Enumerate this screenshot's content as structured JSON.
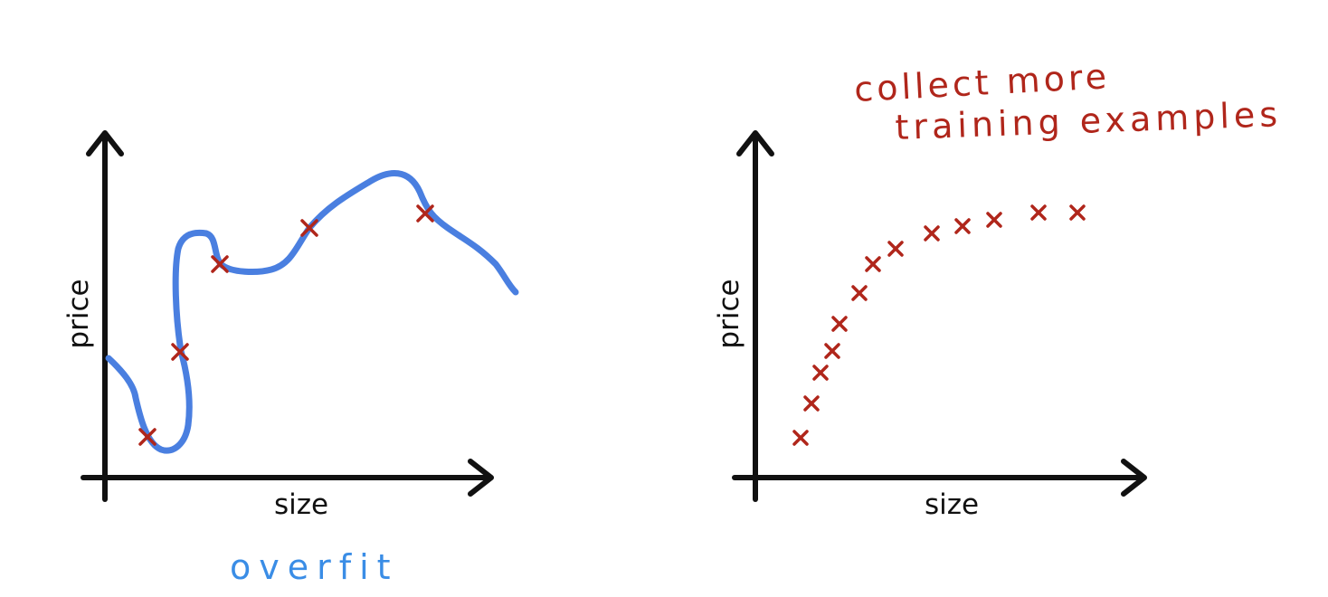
{
  "colors": {
    "axis": "#111111",
    "curve": "#4a7fe0",
    "marker": "#b0261b",
    "annotation_blue": "#3a8de6",
    "annotation_red": "#b0261b",
    "background": "#ffffff"
  },
  "left_panel": {
    "y_axis_label": "price",
    "x_axis_label": "size",
    "annotation": "overfit",
    "marker_icon": "cross-icon"
  },
  "right_panel": {
    "y_axis_label": "price",
    "x_axis_label": "size",
    "annotation_line1": "collect more",
    "annotation_line2": "training examples",
    "marker_icon": "cross-icon"
  }
}
